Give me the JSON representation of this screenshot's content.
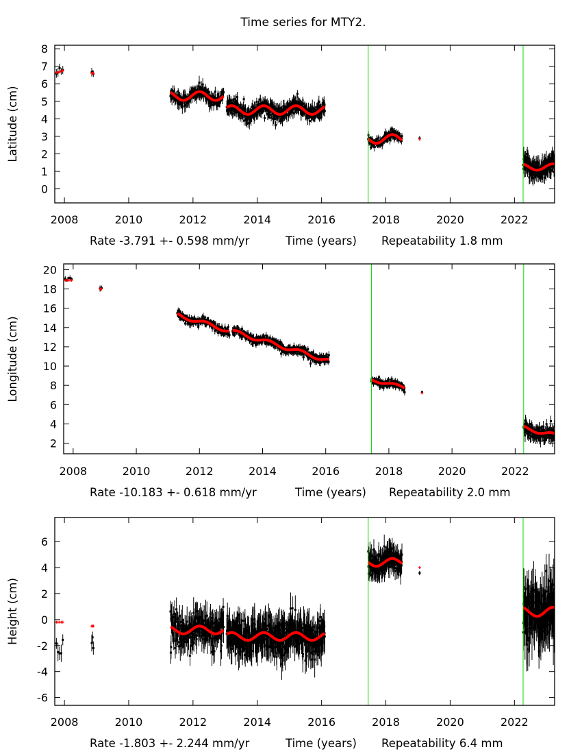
{
  "figure_title": "Time series for MTY2.",
  "colors": {
    "data": "#000000",
    "model": "#ff0000",
    "break": "#00dd00",
    "frame": "#000000"
  },
  "chart_data": [
    {
      "type": "scatter",
      "panel": "latitude",
      "ylabel": "Latitude (cm)",
      "xlabel": "Rate -3.791 +- 0.598 mm/yr    Time (years)    Repeatability 1.8 mm",
      "xlabel_parts": {
        "rate": "Rate -3.791 +- 0.598 mm/yr",
        "axis": "Time (years)",
        "repeatability": "Repeatability 1.8 mm"
      },
      "xlim": [
        2007.7,
        2023.25
      ],
      "ylim": [
        -0.8,
        8.2
      ],
      "xticks": [
        2008,
        2010,
        2012,
        2014,
        2016,
        2018,
        2020,
        2022
      ],
      "yticks": [
        0,
        1,
        2,
        3,
        4,
        5,
        6,
        7,
        8
      ],
      "breaks": [
        2017.45,
        2022.27
      ],
      "rate_mm_yr": -3.791,
      "rate_sigma_mm_yr": 0.598,
      "repeatability_mm": 1.8,
      "segments": [
        {
          "x0": 2007.75,
          "x1": 2007.95,
          "offset": 6.75,
          "amp": 0.12,
          "noise": 0.22,
          "n": 5
        },
        {
          "x0": 2008.85,
          "x1": 2008.9,
          "offset": 6.6,
          "amp": 0.0,
          "noise": 0.2,
          "n": 3
        },
        {
          "x0": 2011.3,
          "x1": 2012.95,
          "offset": 5.3,
          "amp": 0.25,
          "noise": 0.28,
          "n": 180
        },
        {
          "x0": 2013.05,
          "x1": 2016.1,
          "offset": 4.5,
          "amp": 0.25,
          "noise": 0.3,
          "n": 420
        },
        {
          "x0": 2017.45,
          "x1": 2018.5,
          "offset": 2.85,
          "amp": 0.25,
          "noise": 0.18,
          "n": 150
        },
        {
          "x0": 2019.05,
          "x1": 2019.07,
          "offset": 2.85,
          "amp": 0.0,
          "noise": 0.1,
          "n": 1
        },
        {
          "x0": 2022.27,
          "x1": 2023.25,
          "offset": 1.25,
          "amp": 0.18,
          "noise": 0.4,
          "n": 150
        }
      ]
    },
    {
      "type": "scatter",
      "panel": "longitude",
      "ylabel": "Longitude (cm)",
      "xlabel": "Rate -10.183 +- 0.618 mm/yr    Time (years)    Repeatability 2.0 mm",
      "xlabel_parts": {
        "rate": "Rate -10.183 +- 0.618 mm/yr",
        "axis": "Time (years)",
        "repeatability": "Repeatability 2.0 mm"
      },
      "xlim": [
        2007.7,
        2023.25
      ],
      "ylim": [
        0.9,
        20.6
      ],
      "xticks": [
        2008,
        2010,
        2012,
        2014,
        2016,
        2018,
        2020,
        2022
      ],
      "yticks": [
        2,
        4,
        6,
        8,
        10,
        12,
        14,
        16,
        18,
        20
      ],
      "breaks": [
        2017.45,
        2022.27
      ],
      "rate_mm_yr": -10.183,
      "rate_sigma_mm_yr": 0.618,
      "repeatability_mm": 2.0,
      "segments": [
        {
          "x0": 2007.75,
          "x1": 2007.95,
          "offset": 18.9,
          "amp": 0.0,
          "noise": 0.25,
          "n": 5
        },
        {
          "x0": 2008.85,
          "x1": 2008.9,
          "offset": 18.0,
          "amp": 0.0,
          "noise": 0.3,
          "n": 3
        },
        {
          "x0": 2011.3,
          "x1": 2012.95,
          "offset": 15.3,
          "amp": 0.2,
          "noise": 0.3,
          "n": 180,
          "trend": -1.0
        },
        {
          "x0": 2013.05,
          "x1": 2016.1,
          "offset": 13.6,
          "amp": 0.2,
          "noise": 0.3,
          "n": 420,
          "trend": -1.0
        },
        {
          "x0": 2017.45,
          "x1": 2018.5,
          "offset": 8.6,
          "amp": 0.15,
          "noise": 0.25,
          "n": 150,
          "trend": -0.8
        },
        {
          "x0": 2019.05,
          "x1": 2019.07,
          "offset": 7.2,
          "amp": 0.0,
          "noise": 0.1,
          "n": 1
        },
        {
          "x0": 2022.27,
          "x1": 2023.25,
          "offset": 3.6,
          "amp": 0.2,
          "noise": 0.5,
          "n": 150,
          "trend": -0.8
        }
      ]
    },
    {
      "type": "scatter",
      "panel": "height",
      "ylabel": "Height (cm)",
      "xlabel": "Rate -1.803 +- 2.244 mm/yr    Time (years)    Repeatability 6.4 mm",
      "xlabel_parts": {
        "rate": "Rate -1.803 +- 2.244 mm/yr",
        "axis": "Time (years)",
        "repeatability": "Repeatability 6.4 mm"
      },
      "xlim": [
        2007.7,
        2023.25
      ],
      "ylim": [
        -6.6,
        7.85
      ],
      "xticks": [
        2008,
        2010,
        2012,
        2014,
        2016,
        2018,
        2020,
        2022
      ],
      "yticks": [
        -6,
        -4,
        -2,
        0,
        2,
        4,
        6
      ],
      "breaks": [
        2017.45,
        2022.27
      ],
      "rate_mm_yr": -1.803,
      "rate_sigma_mm_yr": 2.244,
      "repeatability_mm": 6.4,
      "segments": [
        {
          "x0": 2007.75,
          "x1": 2007.95,
          "offset": -0.2,
          "amp": 0.0,
          "noise": 0.6,
          "n": 5,
          "data_bias": -2.0
        },
        {
          "x0": 2008.85,
          "x1": 2008.9,
          "offset": -0.5,
          "amp": 0.0,
          "noise": 0.5,
          "n": 3,
          "data_bias": -1.2
        },
        {
          "x0": 2011.3,
          "x1": 2012.95,
          "offset": -0.8,
          "amp": 0.3,
          "noise": 0.9,
          "n": 180
        },
        {
          "x0": 2013.05,
          "x1": 2016.1,
          "offset": -1.3,
          "amp": 0.3,
          "noise": 1.0,
          "n": 420
        },
        {
          "x0": 2017.45,
          "x1": 2018.5,
          "offset": 4.4,
          "amp": 0.3,
          "noise": 0.7,
          "n": 150
        },
        {
          "x0": 2019.05,
          "x1": 2019.07,
          "offset": 4.0,
          "amp": 0.0,
          "noise": 0.2,
          "n": 1,
          "data_bias": -0.6
        },
        {
          "x0": 2022.27,
          "x1": 2023.25,
          "offset": 0.6,
          "amp": 0.35,
          "noise": 1.6,
          "n": 150
        }
      ]
    }
  ]
}
